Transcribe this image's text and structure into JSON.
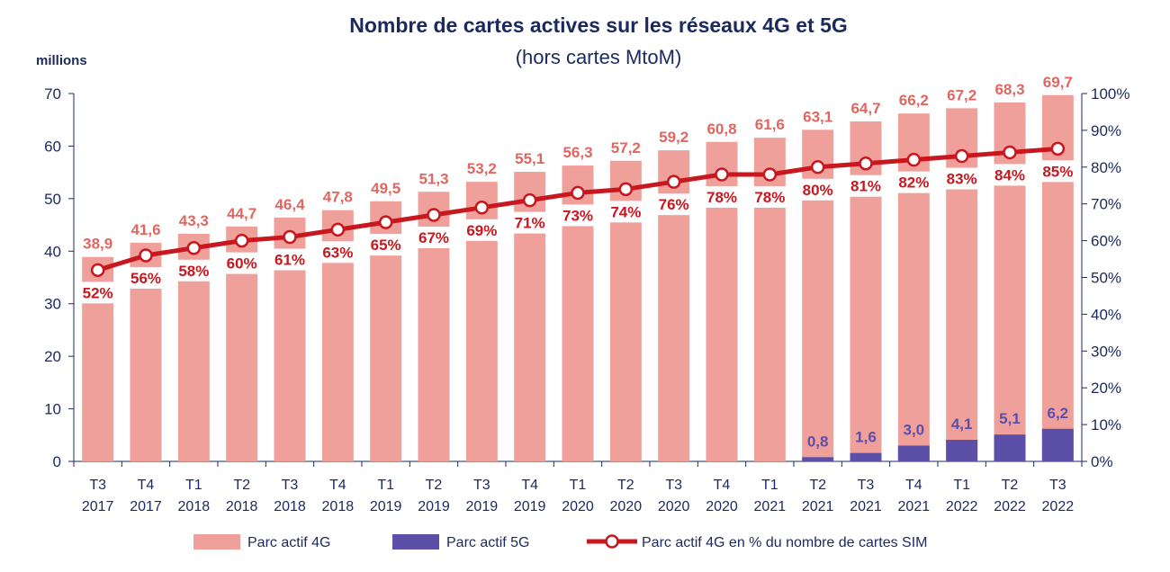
{
  "chart_data": {
    "type": "bar",
    "title": "Nombre de cartes actives sur les réseaux 4G et 5G",
    "subtitle": "(hors cartes MtoM)",
    "ylabel": "millions",
    "ylim": [
      0,
      70
    ],
    "y_ticks": [
      "0",
      "10",
      "20",
      "30",
      "40",
      "50",
      "60",
      "70"
    ],
    "y2lim": [
      0,
      100
    ],
    "y2_ticks": [
      "0%",
      "10%",
      "20%",
      "30%",
      "40%",
      "50%",
      "60%",
      "70%",
      "80%",
      "90%",
      "100%"
    ],
    "categories": [
      {
        "q": "T3",
        "y": "2017"
      },
      {
        "q": "T4",
        "y": "2017"
      },
      {
        "q": "T1",
        "y": "2018"
      },
      {
        "q": "T2",
        "y": "2018"
      },
      {
        "q": "T3",
        "y": "2018"
      },
      {
        "q": "T4",
        "y": "2018"
      },
      {
        "q": "T1",
        "y": "2019"
      },
      {
        "q": "T2",
        "y": "2019"
      },
      {
        "q": "T3",
        "y": "2019"
      },
      {
        "q": "T4",
        "y": "2019"
      },
      {
        "q": "T1",
        "y": "2020"
      },
      {
        "q": "T2",
        "y": "2020"
      },
      {
        "q": "T3",
        "y": "2020"
      },
      {
        "q": "T4",
        "y": "2020"
      },
      {
        "q": "T1",
        "y": "2021"
      },
      {
        "q": "T2",
        "y": "2021"
      },
      {
        "q": "T3",
        "y": "2021"
      },
      {
        "q": "T4",
        "y": "2021"
      },
      {
        "q": "T1",
        "y": "2022"
      },
      {
        "q": "T2",
        "y": "2022"
      },
      {
        "q": "T3",
        "y": "2022"
      }
    ],
    "series": [
      {
        "name": "Parc actif 4G",
        "type": "bar",
        "color": "#f0a09a",
        "values": [
          38.9,
          41.6,
          43.3,
          44.7,
          46.4,
          47.8,
          49.5,
          51.3,
          53.2,
          55.1,
          56.3,
          57.2,
          59.2,
          60.8,
          61.6,
          63.1,
          64.7,
          66.2,
          67.2,
          68.3,
          69.7
        ],
        "labels": [
          "38,9",
          "41,6",
          "43,3",
          "44,7",
          "46,4",
          "47,8",
          "49,5",
          "51,3",
          "53,2",
          "55,1",
          "56,3",
          "57,2",
          "59,2",
          "60,8",
          "61,6",
          "63,1",
          "64,7",
          "66,2",
          "67,2",
          "68,3",
          "69,7"
        ]
      },
      {
        "name": "Parc actif 5G",
        "type": "bar",
        "color": "#5b4fa8",
        "values": [
          null,
          null,
          null,
          null,
          null,
          null,
          null,
          null,
          null,
          null,
          null,
          null,
          null,
          null,
          null,
          0.8,
          1.6,
          3.0,
          4.1,
          5.1,
          6.2
        ],
        "labels": [
          "",
          "",
          "",
          "",
          "",
          "",
          "",
          "",
          "",
          "",
          "",
          "",
          "",
          "",
          "",
          "0,8",
          "1,6",
          "3,0",
          "4,1",
          "5,1",
          "6,2"
        ]
      },
      {
        "name": "Parc actif 4G en % du nombre de cartes SIM",
        "type": "line",
        "axis": "right",
        "color": "#c8171e",
        "values": [
          52,
          56,
          58,
          60,
          61,
          63,
          65,
          67,
          69,
          71,
          73,
          74,
          76,
          78,
          78,
          80,
          81,
          82,
          83,
          84,
          85
        ],
        "labels": [
          "52%",
          "56%",
          "58%",
          "60%",
          "61%",
          "63%",
          "65%",
          "67%",
          "69%",
          "71%",
          "73%",
          "74%",
          "76%",
          "78%",
          "78%",
          "80%",
          "81%",
          "82%",
          "83%",
          "84%",
          "85%"
        ]
      }
    ],
    "legend": "bottom"
  }
}
